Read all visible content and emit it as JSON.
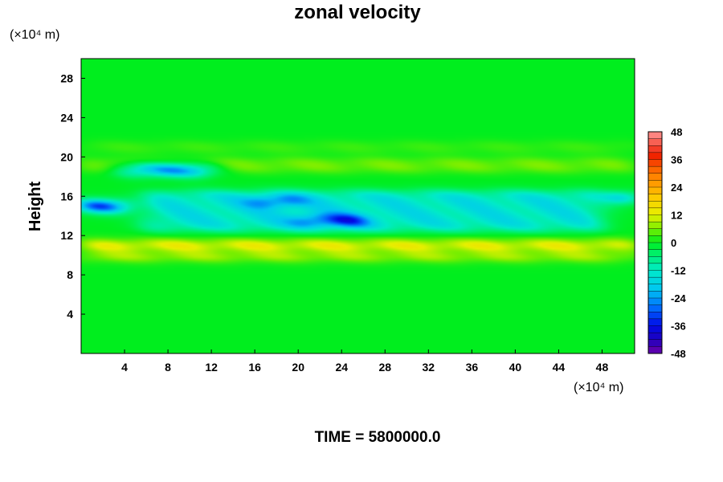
{
  "chart_data": {
    "type": "heatmap",
    "title": "zonal velocity",
    "ylabel": "Height",
    "x_unit_label": "(×10⁴ m)",
    "y_unit_label": "(×10⁴ m)",
    "footer": "TIME = 5800000.0",
    "xlim": [
      0,
      51
    ],
    "ylim": [
      0,
      30
    ],
    "x_ticks": [
      "4",
      "8",
      "12",
      "16",
      "20",
      "24",
      "28",
      "32",
      "36",
      "40",
      "44",
      "48"
    ],
    "y_ticks": [
      "4",
      "8",
      "12",
      "16",
      "20",
      "24",
      "28"
    ],
    "colorbar": {
      "min": -48,
      "max": 48,
      "ticks": [
        "48",
        "36",
        "24",
        "12",
        "0",
        "-12",
        "-24",
        "-36",
        "-48"
      ]
    },
    "field_features": [
      {
        "x": [
          0,
          51
        ],
        "y": [
          10.5,
          11.5
        ],
        "value": 14
      },
      {
        "x": [
          0,
          51
        ],
        "y": [
          9.5,
          10.2
        ],
        "value": 10
      },
      {
        "x": [
          0,
          51
        ],
        "y": [
          18.5,
          19.8
        ],
        "value": 6
      },
      {
        "x": [
          0,
          51
        ],
        "y": [
          20.5,
          21.5
        ],
        "value": 3
      },
      {
        "x": [
          0,
          4
        ],
        "y": [
          14.5,
          15.5
        ],
        "value": -40
      },
      {
        "x": [
          4,
          12
        ],
        "y": [
          18.2,
          19.2
        ],
        "value": -32
      },
      {
        "x": [
          20,
          26
        ],
        "y": [
          13,
          14
        ],
        "value": -26
      },
      {
        "x": [
          16,
          20
        ],
        "y": [
          15,
          16
        ],
        "value": -24
      },
      {
        "x": [
          49,
          51
        ],
        "y": [
          15.5,
          16.3
        ],
        "value": -30
      },
      {
        "x": [
          6,
          48
        ],
        "y": [
          12.5,
          16.5
        ],
        "value": -14
      }
    ]
  }
}
